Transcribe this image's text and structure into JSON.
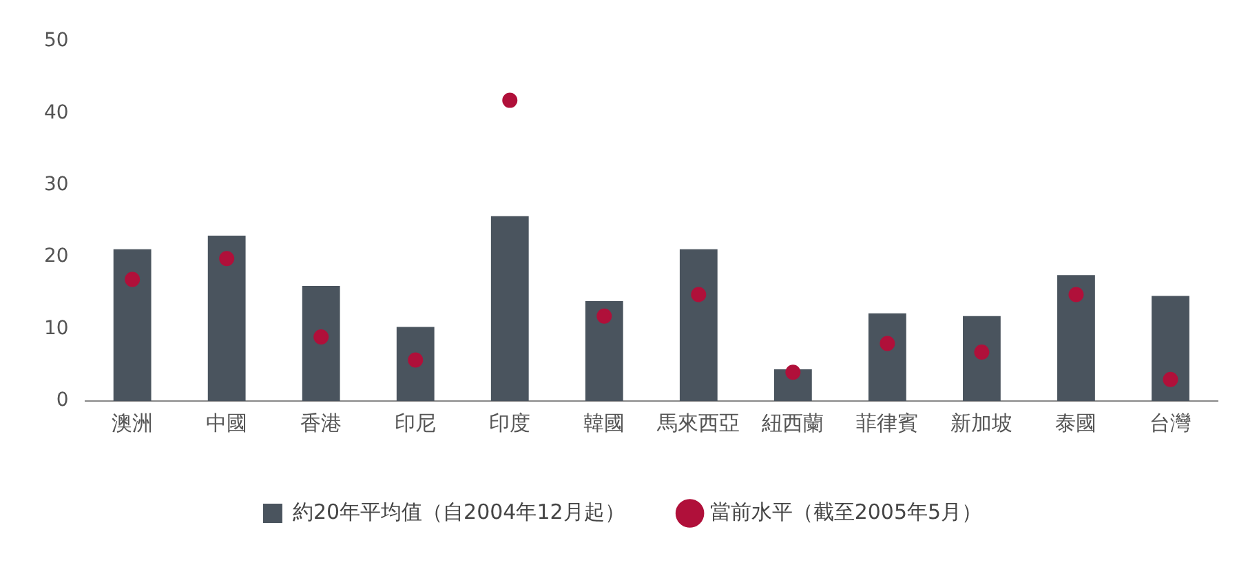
{
  "chart_data": {
    "type": "bar",
    "categories": [
      "澳洲",
      "中國",
      "香港",
      "印尼",
      "印度",
      "韓國",
      "馬來西亞",
      "紐西蘭",
      "菲律賓",
      "新加坡",
      "泰國",
      "台灣"
    ],
    "series": [
      {
        "name": "約20年平均值（自2004年12月起）",
        "color": "#4a545e",
        "values": [
          21.1,
          23.0,
          16.0,
          10.3,
          25.7,
          13.9,
          21.1,
          4.4,
          12.2,
          11.8,
          17.5,
          14.6
        ]
      },
      {
        "name": "當前水平（截至2005年5月）",
        "type": "scatter",
        "color": "#b0103a",
        "marker": "circle",
        "x": [
          "澳洲",
          "中國",
          "香港",
          "印尼",
          "印度",
          "韓國",
          "馬來西亞",
          "紐西蘭",
          "菲律賓",
          "新加坡",
          "泰國",
          "台灣"
        ],
        "values": [
          16.9,
          19.8,
          8.9,
          5.7,
          41.8,
          11.8,
          14.8,
          4.0,
          8.0,
          6.8,
          14.8,
          3.0
        ]
      }
    ],
    "ylim": [
      0,
      50
    ],
    "yticks": [
      0,
      10,
      20,
      30,
      40,
      50
    ],
    "grid": false,
    "legend": "bottom"
  }
}
